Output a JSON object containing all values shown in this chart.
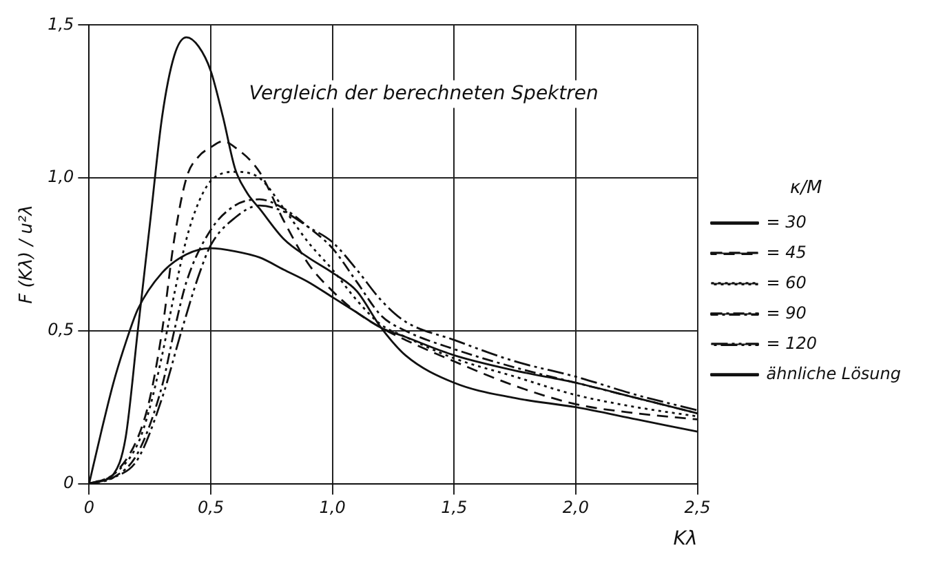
{
  "chart_data": {
    "type": "line",
    "title": "Vergleich der berechneten Spektren",
    "xlabel": "Kλ",
    "ylabel": "F (Kλ) / u²λ",
    "legend_title": "κ/M",
    "xlim": [
      0,
      2.5
    ],
    "ylim": [
      0,
      1.5
    ],
    "xticks": [
      0,
      {
        "value": 0.5,
        "label": "0,5"
      },
      {
        "value": 1.0,
        "label": "1,0"
      },
      {
        "value": 1.5,
        "label": "1,5"
      },
      {
        "value": 2.0,
        "label": "2,0"
      },
      {
        "value": 2.5,
        "label": "2,5"
      }
    ],
    "yticks": [
      0,
      {
        "value": 0.5,
        "label": "0,5"
      },
      {
        "value": 1.0,
        "label": "1,0"
      },
      {
        "value": 1.5,
        "label": "1,5"
      }
    ],
    "grid": true,
    "legend": "right",
    "marker": "none",
    "series": [
      {
        "name": "= 30",
        "color": "#111111",
        "line_style": "solid",
        "x": [
          0,
          0.05,
          0.1,
          0.15,
          0.2,
          0.25,
          0.3,
          0.35,
          0.4,
          0.45,
          0.5,
          0.55,
          0.6,
          0.65,
          0.7,
          0.8,
          0.9,
          1.0,
          1.1,
          1.2,
          1.3,
          1.5,
          1.75,
          2.0,
          2.25,
          2.5
        ],
        "values": [
          0,
          0.01,
          0.03,
          0.15,
          0.5,
          0.85,
          1.2,
          1.4,
          1.46,
          1.43,
          1.35,
          1.2,
          1.03,
          0.95,
          0.9,
          0.8,
          0.74,
          0.69,
          0.63,
          0.51,
          0.42,
          0.33,
          0.28,
          0.25,
          0.21,
          0.17
        ]
      },
      {
        "name": "= 45",
        "color": "#111111",
        "line_style": "dashed",
        "x": [
          0,
          0.1,
          0.2,
          0.25,
          0.3,
          0.35,
          0.4,
          0.45,
          0.5,
          0.55,
          0.6,
          0.7,
          0.8,
          0.9,
          1.0,
          1.1,
          1.2,
          1.3,
          1.5,
          1.75,
          2.0,
          2.25,
          2.5
        ],
        "values": [
          0,
          0.03,
          0.15,
          0.28,
          0.5,
          0.8,
          1.0,
          1.07,
          1.1,
          1.12,
          1.1,
          1.02,
          0.86,
          0.72,
          0.63,
          0.56,
          0.51,
          0.47,
          0.4,
          0.32,
          0.26,
          0.23,
          0.21
        ]
      },
      {
        "name": "= 60",
        "color": "#111111",
        "line_style": "dotted",
        "x": [
          0,
          0.1,
          0.2,
          0.25,
          0.3,
          0.35,
          0.4,
          0.45,
          0.5,
          0.6,
          0.7,
          0.8,
          0.9,
          1.0,
          1.1,
          1.2,
          1.3,
          1.5,
          1.75,
          2.0,
          2.25,
          2.5
        ],
        "values": [
          0,
          0.03,
          0.13,
          0.25,
          0.42,
          0.62,
          0.8,
          0.92,
          0.99,
          1.02,
          1.0,
          0.9,
          0.79,
          0.7,
          0.6,
          0.52,
          0.48,
          0.41,
          0.35,
          0.29,
          0.25,
          0.22
        ]
      },
      {
        "name": "= 90",
        "color": "#111111",
        "line_style": "dashdot",
        "x": [
          0,
          0.1,
          0.2,
          0.3,
          0.35,
          0.4,
          0.5,
          0.6,
          0.7,
          0.8,
          0.9,
          1.0,
          1.1,
          1.2,
          1.3,
          1.5,
          1.75,
          2.0,
          2.25,
          2.5
        ],
        "values": [
          0,
          0.02,
          0.1,
          0.32,
          0.5,
          0.66,
          0.83,
          0.91,
          0.93,
          0.9,
          0.84,
          0.77,
          0.66,
          0.55,
          0.5,
          0.44,
          0.38,
          0.33,
          0.28,
          0.23
        ]
      },
      {
        "name": "= 120",
        "color": "#111111",
        "line_style": "longdashdot",
        "x": [
          0,
          0.1,
          0.2,
          0.3,
          0.38,
          0.45,
          0.5,
          0.6,
          0.7,
          0.8,
          0.9,
          1.0,
          1.1,
          1.2,
          1.3,
          1.5,
          1.75,
          2.0,
          2.25,
          2.5
        ],
        "values": [
          0,
          0.02,
          0.08,
          0.28,
          0.5,
          0.68,
          0.78,
          0.87,
          0.91,
          0.89,
          0.84,
          0.79,
          0.7,
          0.6,
          0.53,
          0.47,
          0.4,
          0.35,
          0.29,
          0.24
        ]
      },
      {
        "name": "ähnliche Lösung",
        "color": "#111111",
        "line_style": "solid",
        "x": [
          0,
          0.05,
          0.1,
          0.15,
          0.2,
          0.3,
          0.4,
          0.5,
          0.6,
          0.7,
          0.8,
          0.9,
          1.0,
          1.1,
          1.2,
          1.3,
          1.5,
          1.75,
          2.0,
          2.25,
          2.5
        ],
        "values": [
          0,
          0.17,
          0.33,
          0.46,
          0.57,
          0.69,
          0.75,
          0.77,
          0.76,
          0.74,
          0.7,
          0.66,
          0.61,
          0.56,
          0.51,
          0.48,
          0.42,
          0.37,
          0.33,
          0.28,
          0.23
        ]
      }
    ]
  }
}
